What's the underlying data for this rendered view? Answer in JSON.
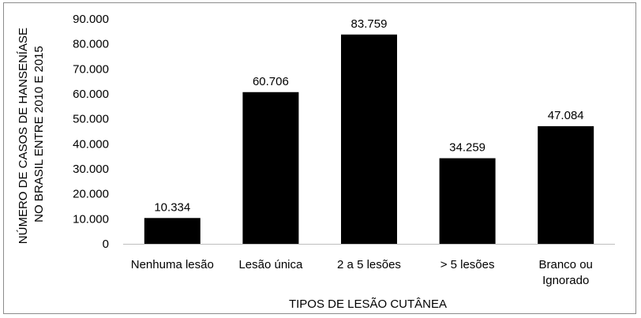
{
  "chart_data": {
    "type": "bar",
    "categories": [
      [
        "Nenhuma lesão"
      ],
      [
        "Lesão única"
      ],
      [
        "2 a 5 lesões"
      ],
      [
        "> 5 lesões"
      ],
      [
        "Branco ou",
        "Ignorado"
      ]
    ],
    "values": [
      10334,
      60706,
      83759,
      34259,
      47084
    ],
    "data_labels": [
      "10.334",
      "60.706",
      "83.759",
      "34.259",
      "47.084"
    ],
    "y_ticks": [
      {
        "value": 0,
        "label": "0"
      },
      {
        "value": 10000,
        "label": "10.000"
      },
      {
        "value": 20000,
        "label": "20.000"
      },
      {
        "value": 30000,
        "label": "30.000"
      },
      {
        "value": 40000,
        "label": "40.000"
      },
      {
        "value": 50000,
        "label": "50.000"
      },
      {
        "value": 60000,
        "label": "60.000"
      },
      {
        "value": 70000,
        "label": "70.000"
      },
      {
        "value": 80000,
        "label": "80.000"
      },
      {
        "value": 90000,
        "label": "90.000"
      }
    ],
    "ylim": [
      0,
      90000
    ],
    "xlabel": "TIPOS DE LESÃO CUTÂNEA",
    "ylabel_lines": [
      "NÚMERO DE CASOS DE HANSENÍASE",
      "NO BRASIL ENTRE 2010 E 2015"
    ],
    "bar_color": "#000000",
    "grid": false,
    "legend": "none"
  }
}
